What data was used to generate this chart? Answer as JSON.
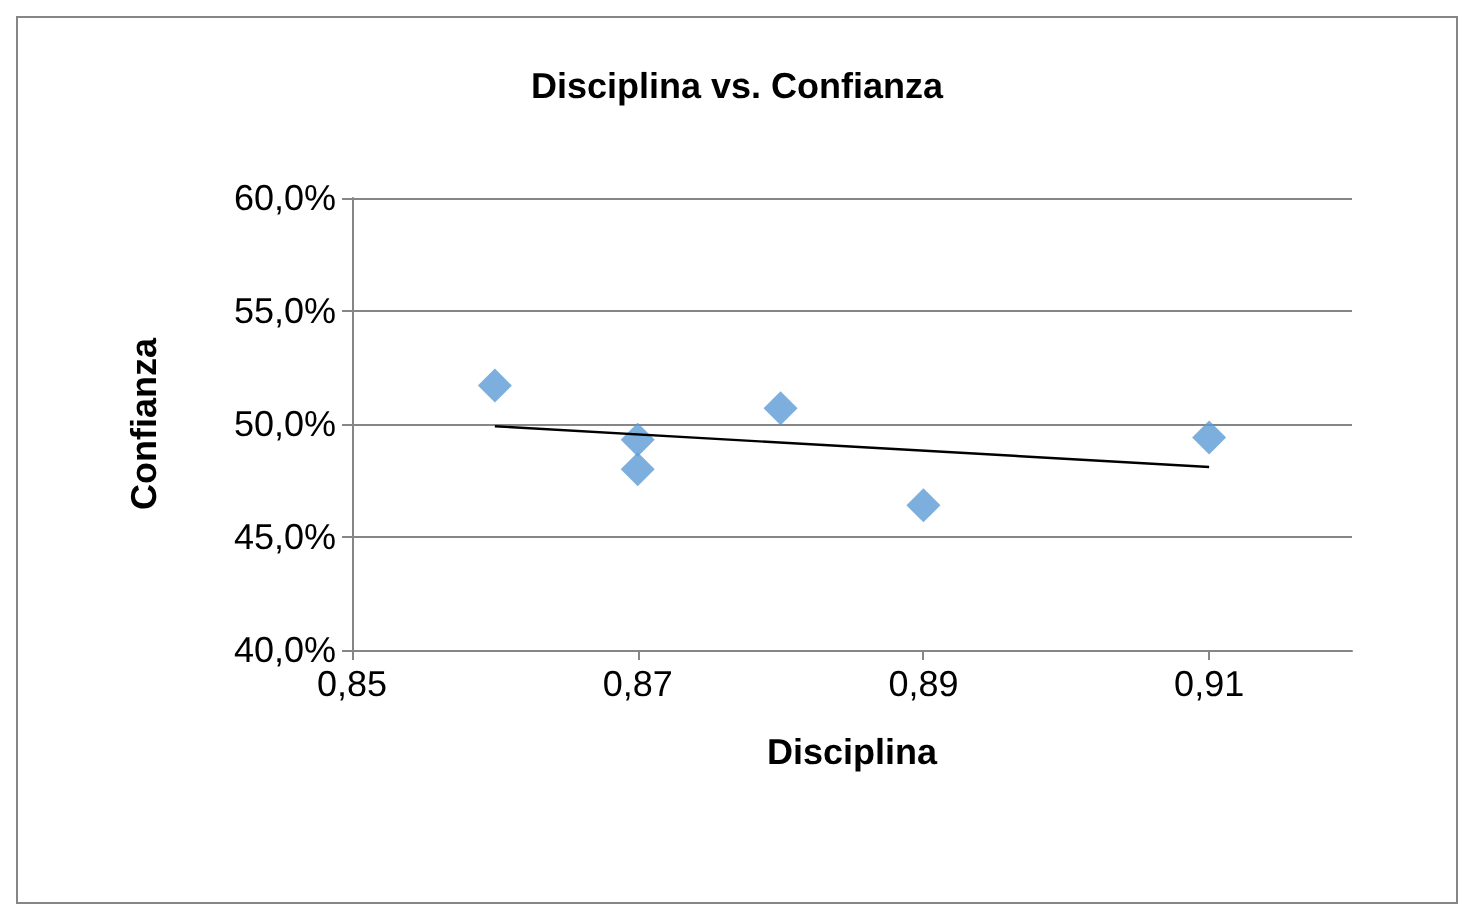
{
  "chart_data": {
    "type": "scatter",
    "title": "Disciplina vs. Confianza",
    "xlabel": "Disciplina",
    "ylabel": "Confianza",
    "x": [
      0.86,
      0.87,
      0.87,
      0.88,
      0.89,
      0.91
    ],
    "series": [
      {
        "color": "#5b9bd5",
        "marker": "diamond",
        "values": [
          51.7,
          49.3,
          48.0,
          50.7,
          46.4,
          49.4
        ]
      },
      {
        "type": "line",
        "color": "#000000",
        "marker": "none",
        "x": [
          0.86,
          0.91
        ],
        "values": [
          49.9,
          48.1
        ]
      }
    ],
    "xlim": [
      0.85,
      0.92
    ],
    "xticks": [
      {
        "value": 0.85,
        "label": "0,85"
      },
      {
        "value": 0.87,
        "label": "0,87"
      },
      {
        "value": 0.89,
        "label": "0,89"
      },
      {
        "value": 0.91,
        "label": "0,91"
      }
    ],
    "ylim": [
      40,
      60
    ],
    "yticks": [
      {
        "value": 40,
        "label": "40,0%"
      },
      {
        "value": 45,
        "label": "45,0%"
      },
      {
        "value": 50,
        "label": "50,0%"
      },
      {
        "value": 55,
        "label": "55,0%"
      },
      {
        "value": 60,
        "label": "60,0%"
      }
    ],
    "grid": "y"
  }
}
